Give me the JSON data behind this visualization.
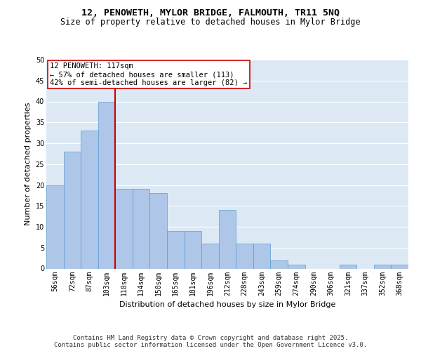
{
  "title": "12, PENOWETH, MYLOR BRIDGE, FALMOUTH, TR11 5NQ",
  "subtitle": "Size of property relative to detached houses in Mylor Bridge",
  "xlabel": "Distribution of detached houses by size in Mylor Bridge",
  "ylabel": "Number of detached properties",
  "categories": [
    "56sqm",
    "72sqm",
    "87sqm",
    "103sqm",
    "118sqm",
    "134sqm",
    "150sqm",
    "165sqm",
    "181sqm",
    "196sqm",
    "212sqm",
    "228sqm",
    "243sqm",
    "259sqm",
    "274sqm",
    "290sqm",
    "306sqm",
    "321sqm",
    "337sqm",
    "352sqm",
    "368sqm"
  ],
  "values": [
    20,
    28,
    33,
    40,
    19,
    19,
    18,
    9,
    9,
    6,
    14,
    6,
    6,
    2,
    1,
    0,
    0,
    1,
    0,
    1,
    1
  ],
  "bar_color": "#aec6e8",
  "bar_edgecolor": "#5b9bd5",
  "background_color": "#dce9f5",
  "vline_color": "#cc0000",
  "annotation_text": "12 PENOWETH: 117sqm\n← 57% of detached houses are smaller (113)\n42% of semi-detached houses are larger (82) →",
  "annotation_box_color": "#ffffff",
  "annotation_box_edgecolor": "#cc0000",
  "ylim": [
    0,
    50
  ],
  "yticks": [
    0,
    5,
    10,
    15,
    20,
    25,
    30,
    35,
    40,
    45,
    50
  ],
  "footer_text": "Contains HM Land Registry data © Crown copyright and database right 2025.\nContains public sector information licensed under the Open Government Licence v3.0.",
  "title_fontsize": 9.5,
  "subtitle_fontsize": 8.5,
  "axis_label_fontsize": 8,
  "tick_fontsize": 7,
  "annotation_fontsize": 7.5,
  "footer_fontsize": 6.5
}
